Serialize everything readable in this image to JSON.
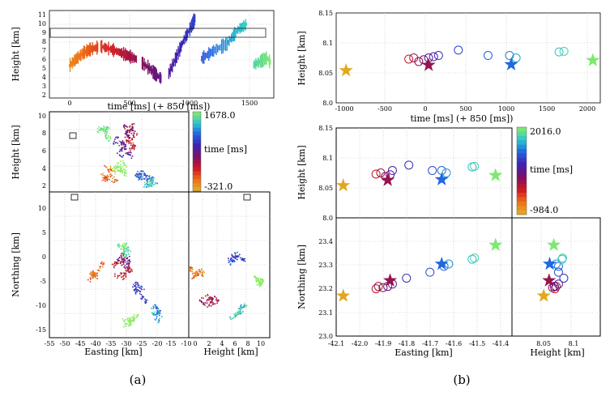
{
  "figure": {
    "caption_a": "(a)",
    "caption_b": "(b)"
  },
  "chart_data": [
    {
      "id": "a_top",
      "type": "scatter",
      "title": "",
      "xlabel": "time [ms] (+ 850 [ms])",
      "ylabel": "Height [km]",
      "xlim": [
        -200,
        1650
      ],
      "ylim": [
        1,
        11
      ],
      "xticks": [
        "0",
        "500",
        "1000",
        "1500"
      ],
      "yticks": [
        "2",
        "3",
        "4",
        "5",
        "6",
        "7",
        "8",
        "9",
        "10",
        "11"
      ],
      "highlight_band": [
        7.8,
        8.4
      ],
      "series": [
        {
          "name": "orange branch",
          "x": [
            -40,
            20,
            80,
            140,
            200
          ],
          "y": [
            4.7,
            5.5,
            6.2,
            6.6,
            6.8
          ]
        },
        {
          "name": "red-magenta",
          "x": [
            220,
            300,
            380,
            450,
            520
          ],
          "y": [
            6.9,
            6.6,
            6.2,
            5.8,
            5.4
          ]
        },
        {
          "name": "purple",
          "x": [
            560,
            620,
            680,
            720
          ],
          "y": [
            5.0,
            4.4,
            3.6,
            3.2
          ]
        },
        {
          "name": "blue",
          "x": [
            780,
            840,
            900,
            960,
            1000
          ],
          "y": [
            3.8,
            5.6,
            7.5,
            9.0,
            10.2
          ]
        },
        {
          "name": "cyan",
          "x": [
            1050,
            1150,
            1260,
            1350,
            1430
          ],
          "y": [
            5.5,
            6.4,
            7.2,
            8.8,
            9.5
          ]
        },
        {
          "name": "aqua",
          "x": [
            1480,
            1540,
            1590,
            1620
          ],
          "y": [
            4.8,
            5.2,
            5.6,
            5.0
          ]
        }
      ]
    },
    {
      "id": "a_height_vs_easting",
      "type": "scatter",
      "xlabel": "",
      "ylabel": "Height [km]",
      "ylim": [
        2,
        11
      ],
      "yticks": [
        "2",
        "4",
        "6",
        "8",
        "10"
      ],
      "series": [
        {
          "name": "sources",
          "x": [
            -35,
            -32,
            -30,
            -28,
            -25,
            -22,
            -36,
            -31
          ],
          "y": [
            5,
            7,
            8.5,
            6,
            4,
            3,
            9.5,
            4.5
          ]
        }
      ]
    },
    {
      "id": "a_northing_vs_easting",
      "type": "scatter",
      "xlabel": "Easting [km]",
      "ylabel": "Northing [km]",
      "xlim": [
        -55,
        -10
      ],
      "ylim": [
        -17,
        13
      ],
      "xticks": [
        "-55",
        "-50",
        "-45",
        "-40",
        "-35",
        "-30",
        "-25",
        "-20",
        "-15",
        "-10"
      ],
      "yticks": [
        "-15",
        "-10",
        "-5",
        "0",
        "5",
        "10"
      ],
      "series": [
        {
          "name": "sources",
          "x": [
            -38,
            -34,
            -30,
            -26,
            -22,
            -32,
            -28
          ],
          "y": [
            -2,
            -4,
            -1,
            -7,
            -12,
            2,
            -13
          ]
        }
      ]
    },
    {
      "id": "a_northing_vs_height",
      "type": "scatter",
      "xlabel": "Height [km]",
      "ylabel": "",
      "xlim": [
        -1,
        11
      ],
      "ylim": [
        -17,
        13
      ],
      "xticks": [
        "0",
        "2",
        "4",
        "6",
        "8",
        "10"
      ],
      "series": [
        {
          "name": "sources",
          "x": [
            1,
            3,
            5,
            7,
            9
          ],
          "y": [
            -3,
            -8,
            -1,
            -10,
            -5
          ]
        }
      ]
    },
    {
      "id": "a_colorbar",
      "type": "heatmap",
      "label": "time [ms]",
      "max_label": "1678.0",
      "min_label": "-321.0"
    },
    {
      "id": "b_top",
      "type": "scatter",
      "xlabel": "time [ms] (+ 850 [ms])",
      "ylabel": "Height [km]",
      "xlim": [
        -1100,
        2100
      ],
      "ylim": [
        8.0,
        8.15
      ],
      "xticks": [
        "-1000",
        "-500",
        "0",
        "500",
        "1000",
        "1500",
        "2000"
      ],
      "yticks": [
        "8.0",
        "8.05",
        "8.1",
        "8.15"
      ],
      "circles": {
        "x": [
          -220,
          -160,
          -100,
          -40,
          20,
          80,
          140,
          380,
          740,
          1000,
          1080,
          1600,
          1660
        ],
        "y": [
          8.073,
          8.075,
          8.069,
          8.072,
          8.075,
          8.077,
          8.079,
          8.088,
          8.079,
          8.079,
          8.075,
          8.085,
          8.086
        ]
      },
      "stars": {
        "x": [
          -980,
          20,
          1020,
          2010
        ],
        "y": [
          8.054,
          8.063,
          8.064,
          8.071
        ]
      }
    },
    {
      "id": "b_height_vs_easting",
      "type": "scatter",
      "xlabel": "",
      "ylabel": "Height [km]",
      "xlim": [
        -42.1,
        -41.35
      ],
      "ylim": [
        8.0,
        8.15
      ],
      "yticks": [
        "8.0",
        "8.05",
        "8.1",
        "8.15"
      ],
      "circles": {
        "x": [
          -41.93,
          -41.91,
          -41.89,
          -41.87,
          -41.86,
          -41.79,
          -41.69,
          -41.65,
          -41.63,
          -41.52,
          -41.51
        ],
        "y": [
          8.073,
          8.075,
          8.069,
          8.072,
          8.079,
          8.088,
          8.079,
          8.079,
          8.075,
          8.085,
          8.086
        ]
      },
      "stars": {
        "x": [
          -42.07,
          -41.88,
          -41.65,
          -41.42
        ],
        "y": [
          8.054,
          8.063,
          8.064,
          8.071
        ]
      }
    },
    {
      "id": "b_northing_vs_easting",
      "type": "scatter",
      "xlabel": "Easting [km]",
      "ylabel": "Northing [km]",
      "xlim": [
        -42.1,
        -41.35
      ],
      "ylim": [
        23.0,
        23.5
      ],
      "xticks": [
        "-42.1",
        "-42.0",
        "-41.9",
        "-41.8",
        "-41.7",
        "-41.6",
        "-41.5",
        "-41.4"
      ],
      "yticks": [
        "23.0",
        "23.1",
        "23.2",
        "23.3",
        "23.4"
      ],
      "circles": {
        "x": [
          -41.93,
          -41.92,
          -41.9,
          -41.88,
          -41.86,
          -41.8,
          -41.7,
          -41.64,
          -41.62,
          -41.52,
          -41.51
        ],
        "y": [
          23.2,
          23.21,
          23.205,
          23.21,
          23.22,
          23.245,
          23.27,
          23.295,
          23.305,
          23.325,
          23.33
        ]
      },
      "stars": {
        "x": [
          -42.07,
          -41.87,
          -41.65,
          -41.42
        ],
        "y": [
          23.17,
          23.235,
          23.305,
          23.385
        ]
      }
    },
    {
      "id": "b_northing_vs_height",
      "type": "scatter",
      "xlabel": "Height [km]",
      "ylabel": "",
      "xlim": [
        8.0,
        8.15
      ],
      "ylim": [
        23.0,
        23.5
      ],
      "xticks": [
        "8.05",
        "8.1"
      ],
      "circles": {
        "x": [
          8.073,
          8.075,
          8.069,
          8.072,
          8.079,
          8.088,
          8.079,
          8.079,
          8.075,
          8.085,
          8.086
        ],
        "y": [
          23.2,
          23.21,
          23.205,
          23.21,
          23.22,
          23.245,
          23.27,
          23.295,
          23.305,
          23.325,
          23.33
        ]
      },
      "stars": {
        "x": [
          8.054,
          8.063,
          8.064,
          8.071
        ],
        "y": [
          23.17,
          23.235,
          23.305,
          23.385
        ]
      }
    },
    {
      "id": "b_colorbar",
      "type": "heatmap",
      "label": "time [ms]",
      "max_label": "2016.0",
      "min_label": "-984.0"
    }
  ]
}
